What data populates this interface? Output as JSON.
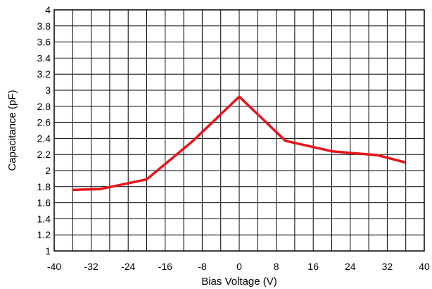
{
  "chart_data": {
    "type": "line",
    "xlabel": "Bias Voltage (V)",
    "ylabel": "Capacitance (pF)",
    "xlim": [
      -40,
      40
    ],
    "ylim": [
      1,
      4
    ],
    "x_ticks": [
      -40,
      -32,
      -24,
      -16,
      -8,
      0,
      8,
      16,
      24,
      32,
      40
    ],
    "x_tick_labels": [
      "-40",
      "-32",
      "-24",
      "-16",
      "-8",
      "0",
      "8",
      "16",
      "24",
      "32",
      "40"
    ],
    "x_grid_step": 4,
    "y_ticks": [
      1,
      1.2,
      1.4,
      1.6,
      1.8,
      2,
      2.2,
      2.4,
      2.6,
      2.8,
      3,
      3.2,
      3.4,
      3.6,
      3.8,
      4
    ],
    "y_tick_labels": [
      "1",
      "1.2",
      "1.4",
      "1.6",
      "1.8",
      "2",
      "2.2",
      "2.4",
      "2.6",
      "2.8",
      "3",
      "3.2",
      "3.4",
      "3.6",
      "3.8",
      "4"
    ],
    "grid": true,
    "line_color": "#e8141b",
    "series": [
      {
        "x": [
          -36,
          -30,
          -20,
          -10,
          0,
          10,
          20,
          30,
          36
        ],
        "y": [
          1.76,
          1.77,
          1.89,
          2.37,
          2.92,
          2.37,
          2.24,
          2.19,
          2.1
        ]
      }
    ]
  }
}
